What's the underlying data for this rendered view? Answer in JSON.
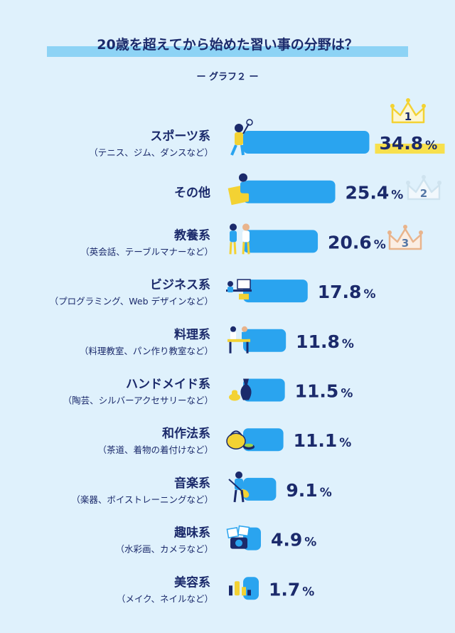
{
  "title": "20歳を超えてから始めた習い事の分野は？",
  "subtitle": "ー グラフ２ ー",
  "colors": {
    "background": "#dff1fc",
    "bar": "#2aa4ef",
    "text": "#1b2a6b",
    "title_highlight": "#8dd3f5",
    "value_highlight": "#f7e04d",
    "crown_gold": "#f3d233",
    "crown_silver": "#cfe3ef",
    "crown_bronze": "#e9b48c"
  },
  "chart_data": {
    "type": "bar",
    "orientation": "horizontal",
    "categories": [
      {
        "name": "スポーツ系",
        "detail": "（テニス、ジム、ダンスなど）"
      },
      {
        "name": "その他",
        "detail": ""
      },
      {
        "name": "教養系",
        "detail": "（英会話、テーブルマナーなど）"
      },
      {
        "name": "ビジネス系",
        "detail": "（プログラミング、Web デザインなど）"
      },
      {
        "name": "料理系",
        "detail": "（料理教室、パン作り教室など）"
      },
      {
        "name": "ハンドメイド系",
        "detail": "（陶芸、シルバーアクセサリーなど）"
      },
      {
        "name": "和作法系",
        "detail": "（茶道、着物の着付けなど）"
      },
      {
        "name": "音楽系",
        "detail": "（楽器、ボイストレーニングなど）"
      },
      {
        "name": "趣味系",
        "detail": "（水彩画、カメラなど）"
      },
      {
        "name": "美容系",
        "detail": "（メイク、ネイルなど）"
      }
    ],
    "values": [
      34.8,
      25.4,
      20.6,
      17.8,
      11.8,
      11.5,
      11.1,
      9.1,
      4.9,
      1.7
    ],
    "value_labels": [
      "34.8",
      "25.4",
      "20.6",
      "17.8",
      "11.8",
      "11.5",
      "11.1",
      "9.1",
      "4.9",
      "1.7"
    ],
    "unit": "%",
    "ranks": [
      {
        "index": 0,
        "label": "1",
        "medal": "gold"
      },
      {
        "index": 1,
        "label": "2",
        "medal": "silver"
      },
      {
        "index": 2,
        "label": "3",
        "medal": "bronze"
      }
    ],
    "illustrations": [
      "tennis-player-icon",
      "reading-woman-icon",
      "conversation-people-icon",
      "computer-desk-icon",
      "cooking-people-icon",
      "pottery-vase-icon",
      "tea-kettle-icon",
      "guitar-player-icon",
      "camera-photos-icon",
      "cosmetics-icon"
    ]
  }
}
